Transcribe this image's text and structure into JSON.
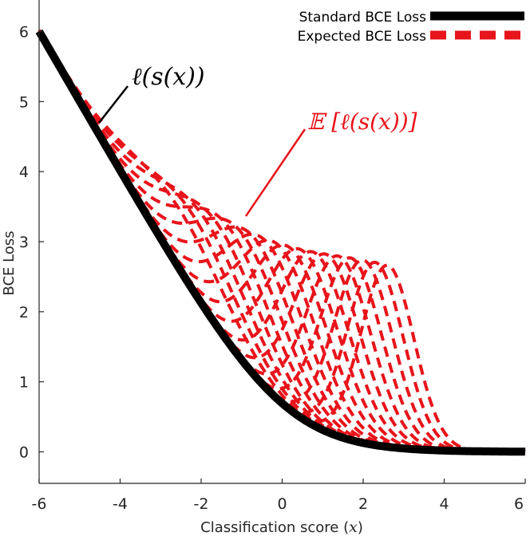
{
  "chart_data": {
    "type": "line",
    "title": "",
    "xlabel": "Classification score (",
    "xlabel_var": "x",
    "xlabel_close": ")",
    "ylabel": "BCE Loss",
    "xlim": [
      -6,
      6
    ],
    "ylim": [
      -0.45,
      6.45
    ],
    "xticks": [
      -6,
      -4,
      -2,
      0,
      2,
      4,
      6
    ],
    "yticks": [
      0,
      1,
      2,
      3,
      4,
      5,
      6
    ],
    "grid": false,
    "legend_placement": "top-right",
    "colors": {
      "standard": "#000000",
      "expected": "#e8141b",
      "axis": "#262626"
    },
    "series": [
      {
        "name": "Standard BCE Loss",
        "style": "solid",
        "function": "softplus(-x)"
      },
      {
        "name": "Expected BCE Loss",
        "style": "dashed",
        "bump_centers": [
          -2.5,
          -2.2,
          -1.9,
          -1.6,
          -1.3,
          -1.0,
          -0.7,
          -0.4,
          -0.1,
          0.2,
          0.5,
          0.8,
          1.1,
          1.4,
          1.7,
          2.0,
          2.3,
          2.6
        ]
      }
    ],
    "annotations": [
      {
        "id": "standard",
        "text": "ℓ(s(x))"
      },
      {
        "id": "expected",
        "text": "𝔼 [ℓ(s(x))]"
      }
    ]
  }
}
